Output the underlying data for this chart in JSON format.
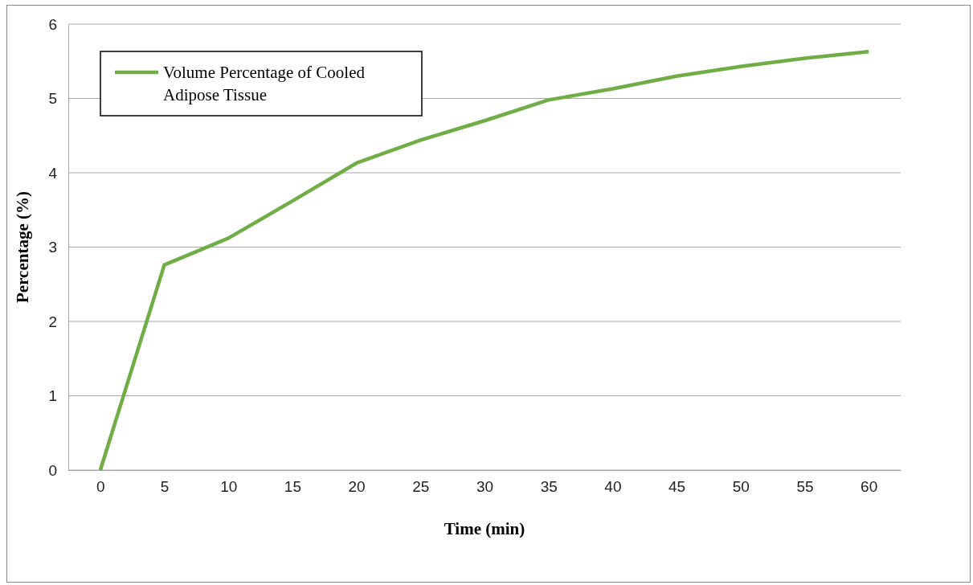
{
  "chart_data": {
    "type": "line",
    "xlabel": "Time (min)",
    "ylabel": "Percentage (%)",
    "categories": [
      "0",
      "5",
      "10",
      "15",
      "20",
      "25",
      "30",
      "35",
      "40",
      "45",
      "50",
      "55",
      "60"
    ],
    "series": [
      {
        "name": "Volume Percentage of Cooled Adipose Tissue",
        "color": "#70ad47",
        "values": [
          0,
          2.76,
          3.12,
          3.62,
          4.13,
          4.44,
          4.7,
          4.98,
          5.13,
          5.3,
          5.43,
          5.54,
          5.63
        ]
      }
    ],
    "ylim": [
      0,
      6
    ],
    "yticks": [
      0,
      1,
      2,
      3,
      4,
      5,
      6
    ],
    "grid": "y",
    "legend": "top left",
    "marker": "none",
    "line_style": "solid"
  }
}
